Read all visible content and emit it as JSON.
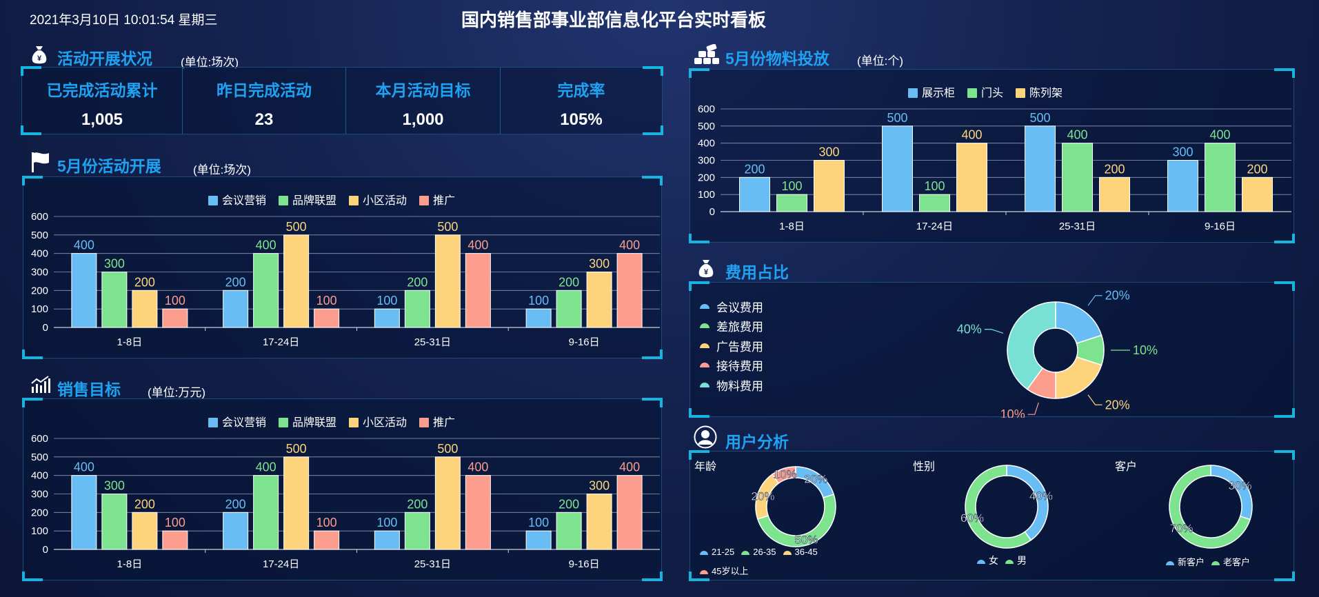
{
  "header": {
    "datetime": "2021年3月10日 10:01:54 星期三",
    "title": "国内销售部事业部信息化平台实时看板"
  },
  "colors": {
    "c1": "#67bdf4",
    "c2": "#7ee38f",
    "c3": "#fdd47b",
    "c4": "#fc9d8d",
    "c5": "#78e0d4"
  },
  "activity": {
    "title": "活动开展状况",
    "unit": "(单位:场次)",
    "stats": [
      {
        "label": "已完成活动累计",
        "value": "1,005"
      },
      {
        "label": "昨日完成活动",
        "value": "23"
      },
      {
        "label": "本月活动目标",
        "value": "1,000"
      },
      {
        "label": "完成率",
        "value": "105%"
      }
    ]
  },
  "may_activity": {
    "title": "5月份活动开展",
    "unit": "(单位:场次)"
  },
  "sales": {
    "title": "销售目标",
    "unit": "(单位:万元)"
  },
  "material": {
    "title": "5月份物料投放",
    "unit": "(单位:个)"
  },
  "cost": {
    "title": "费用占比"
  },
  "users": {
    "title": "用户分析",
    "age_label": "年龄",
    "gender_label": "性别",
    "customer_label": "客户"
  },
  "chart_data": [
    {
      "id": "may_activity_chart",
      "type": "bar",
      "categories": [
        "1-8日",
        "17-24日",
        "25-31日",
        "9-16日"
      ],
      "series": [
        {
          "name": "会议营销",
          "values": [
            400,
            200,
            100,
            100
          ]
        },
        {
          "name": "品牌联盟",
          "values": [
            300,
            400,
            200,
            200
          ]
        },
        {
          "name": "小区活动",
          "values": [
            200,
            500,
            500,
            300
          ]
        },
        {
          "name": "推广",
          "values": [
            100,
            100,
            400,
            400
          ]
        }
      ],
      "yticks": [
        0,
        100,
        200,
        300,
        400,
        500,
        600
      ],
      "ylim": [
        0,
        600
      ],
      "legend": "top-center",
      "grid": true
    },
    {
      "id": "sales_chart",
      "type": "bar",
      "categories": [
        "1-8日",
        "17-24日",
        "25-31日",
        "9-16日"
      ],
      "series": [
        {
          "name": "会议营销",
          "values": [
            400,
            200,
            100,
            100
          ]
        },
        {
          "name": "品牌联盟",
          "values": [
            300,
            400,
            200,
            200
          ]
        },
        {
          "name": "小区活动",
          "values": [
            200,
            500,
            500,
            300
          ]
        },
        {
          "name": "推广",
          "values": [
            100,
            100,
            400,
            400
          ]
        }
      ],
      "yticks": [
        0,
        100,
        200,
        300,
        400,
        500,
        600
      ],
      "ylim": [
        0,
        600
      ],
      "legend": "top-center",
      "grid": true
    },
    {
      "id": "material_chart",
      "type": "bar",
      "categories": [
        "1-8日",
        "17-24日",
        "25-31日",
        "9-16日"
      ],
      "series": [
        {
          "name": "展示柜",
          "values": [
            200,
            500,
            500,
            300
          ]
        },
        {
          "name": "门头",
          "values": [
            100,
            100,
            400,
            400
          ]
        },
        {
          "name": "陈列架",
          "values": [
            300,
            400,
            200,
            200
          ]
        }
      ],
      "yticks": [
        0,
        100,
        200,
        300,
        400,
        500,
        600
      ],
      "ylim": [
        0,
        600
      ],
      "legend": "top-center",
      "grid": true
    },
    {
      "id": "cost_chart",
      "type": "pie",
      "labels": [
        "会议费用",
        "差旅费用",
        "广告费用",
        "接待费用",
        "物料费用"
      ],
      "values": [
        20,
        10,
        20,
        10,
        40
      ],
      "value_labels": [
        "20%",
        "10%",
        "20%",
        "10%",
        "40%"
      ],
      "legend": "left"
    },
    {
      "id": "age_chart",
      "type": "pie",
      "labels": [
        "21-25",
        "26-35",
        "36-45",
        "45岁以上"
      ],
      "values": [
        20,
        50,
        20,
        10
      ],
      "value_labels": [
        "20%",
        "50%",
        "20%",
        "10%"
      ],
      "legend": "bottom"
    },
    {
      "id": "gender_chart",
      "type": "pie",
      "labels": [
        "女",
        "男"
      ],
      "values": [
        40,
        60
      ],
      "value_labels": [
        "40%",
        "60%"
      ],
      "legend": "bottom"
    },
    {
      "id": "customer_chart",
      "type": "pie",
      "labels": [
        "新客户",
        "老客户"
      ],
      "values": [
        30,
        70
      ],
      "value_labels": [
        "30%",
        "70%"
      ],
      "legend": "bottom"
    }
  ]
}
